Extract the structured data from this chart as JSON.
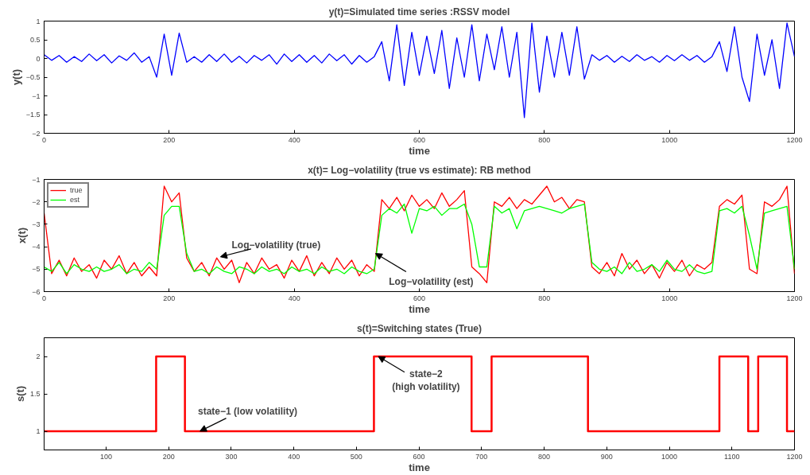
{
  "chart_data": [
    {
      "type": "line",
      "title": "y(t)=Simulated time series :RSSV model",
      "xlabel": "time",
      "ylabel": "y(t)",
      "xlim": [
        0,
        1200
      ],
      "ylim": [
        -2,
        1
      ],
      "xticks": [
        0,
        200,
        400,
        600,
        800,
        1000,
        1200
      ],
      "yticks": [
        -2,
        -1.5,
        -1,
        -0.5,
        0,
        0.5,
        1
      ],
      "grid": false,
      "legend": false,
      "x": [
        0,
        12,
        24,
        36,
        48,
        60,
        72,
        84,
        96,
        108,
        120,
        132,
        144,
        156,
        168,
        180,
        192,
        204,
        216,
        228,
        240,
        252,
        264,
        276,
        288,
        300,
        312,
        324,
        336,
        348,
        360,
        372,
        384,
        396,
        408,
        420,
        432,
        444,
        456,
        468,
        480,
        492,
        504,
        516,
        528,
        540,
        552,
        564,
        576,
        588,
        600,
        612,
        624,
        636,
        648,
        660,
        672,
        684,
        696,
        708,
        720,
        732,
        744,
        756,
        768,
        780,
        792,
        804,
        816,
        828,
        840,
        852,
        864,
        876,
        888,
        900,
        912,
        924,
        936,
        948,
        960,
        972,
        984,
        996,
        1008,
        1020,
        1032,
        1044,
        1056,
        1068,
        1080,
        1092,
        1104,
        1116,
        1128,
        1140,
        1152,
        1164,
        1176,
        1188,
        1200
      ],
      "series": [
        {
          "color": "#0000ff",
          "values": [
            0.1,
            -0.05,
            0.08,
            -0.1,
            0.05,
            -0.08,
            0.12,
            -0.06,
            0.1,
            -0.12,
            0.07,
            -0.05,
            0.15,
            -0.1,
            0.05,
            -0.5,
            0.65,
            -0.45,
            0.68,
            -0.1,
            0.05,
            -0.1,
            0.1,
            -0.08,
            0.12,
            -0.1,
            0.06,
            -0.12,
            0.08,
            -0.05,
            0.1,
            -0.15,
            0.12,
            -0.08,
            0.1,
            -0.1,
            0.08,
            -0.12,
            0.12,
            -0.06,
            0.1,
            -0.15,
            0.08,
            -0.1,
            0.05,
            0.45,
            -0.6,
            0.9,
            -0.72,
            0.7,
            -0.45,
            0.6,
            -0.4,
            0.75,
            -0.8,
            0.55,
            -0.5,
            0.9,
            -0.6,
            0.65,
            -0.3,
            0.85,
            -0.5,
            0.7,
            -1.58,
            0.95,
            -0.9,
            0.6,
            -0.5,
            0.7,
            -0.45,
            0.85,
            -0.55,
            0.1,
            -0.05,
            0.08,
            -0.1,
            0.06,
            -0.08,
            0.1,
            -0.05,
            0.05,
            -0.1,
            0.08,
            -0.06,
            0.1,
            -0.05,
            0.08,
            -0.1,
            0.05,
            0.45,
            -0.35,
            0.85,
            -0.5,
            -1.15,
            0.65,
            -0.45,
            0.5,
            -0.8,
            0.95,
            0.05
          ]
        }
      ]
    },
    {
      "type": "line",
      "title": "x(t)= Log−volatility (true vs estimate): RB method",
      "xlabel": "time",
      "ylabel": "x(t)",
      "xlim": [
        0,
        1200
      ],
      "ylim": [
        -6,
        -1
      ],
      "xticks": [
        0,
        200,
        400,
        600,
        800,
        1000,
        1200
      ],
      "yticks": [
        -6,
        -5,
        -4,
        -3,
        -2,
        -1
      ],
      "grid": false,
      "legend": "top left",
      "x": [
        0,
        12,
        24,
        36,
        48,
        60,
        72,
        84,
        96,
        108,
        120,
        132,
        144,
        156,
        168,
        180,
        192,
        204,
        216,
        228,
        240,
        252,
        264,
        276,
        288,
        300,
        312,
        324,
        336,
        348,
        360,
        372,
        384,
        396,
        408,
        420,
        432,
        444,
        456,
        468,
        480,
        492,
        504,
        516,
        528,
        540,
        552,
        564,
        576,
        588,
        600,
        612,
        624,
        636,
        648,
        660,
        672,
        684,
        696,
        708,
        720,
        732,
        744,
        756,
        768,
        780,
        792,
        804,
        816,
        828,
        840,
        852,
        864,
        876,
        888,
        900,
        912,
        924,
        936,
        948,
        960,
        972,
        984,
        996,
        1008,
        1020,
        1032,
        1044,
        1056,
        1068,
        1080,
        1092,
        1104,
        1116,
        1128,
        1140,
        1152,
        1164,
        1176,
        1188,
        1200
      ],
      "annotations": [
        {
          "text": "Log−volatility (true)",
          "x": 282,
          "y": -4.45
        },
        {
          "text": "Log−volatility (est)",
          "x": 530,
          "y": -4.3
        }
      ],
      "series": [
        {
          "name": "true",
          "color": "#ff0000",
          "values": [
            -2.5,
            -5.2,
            -4.6,
            -5.3,
            -4.5,
            -5.1,
            -4.8,
            -5.4,
            -4.6,
            -5.0,
            -4.4,
            -5.2,
            -4.7,
            -5.3,
            -4.9,
            -5.3,
            -1.3,
            -2.0,
            -1.6,
            -4.5,
            -5.1,
            -4.7,
            -5.3,
            -4.5,
            -5.0,
            -4.6,
            -5.6,
            -4.7,
            -5.2,
            -4.5,
            -5.0,
            -4.8,
            -5.4,
            -4.6,
            -5.1,
            -4.4,
            -5.3,
            -4.7,
            -5.2,
            -4.5,
            -5.0,
            -4.6,
            -5.3,
            -4.8,
            -5.1,
            -1.9,
            -2.3,
            -1.8,
            -2.4,
            -1.7,
            -2.2,
            -1.9,
            -2.3,
            -1.6,
            -2.2,
            -1.9,
            -1.5,
            -4.9,
            -5.2,
            -5.6,
            -2.0,
            -2.2,
            -1.8,
            -2.3,
            -1.9,
            -2.1,
            -1.7,
            -1.3,
            -2.0,
            -1.8,
            -2.3,
            -1.9,
            -2.0,
            -4.9,
            -5.2,
            -4.7,
            -5.3,
            -4.3,
            -5.0,
            -4.6,
            -5.2,
            -4.8,
            -5.4,
            -4.7,
            -5.1,
            -4.6,
            -5.3,
            -4.8,
            -5.0,
            -4.7,
            -2.2,
            -1.9,
            -2.1,
            -1.7,
            -5.0,
            -5.2,
            -2.0,
            -2.2,
            -1.9,
            -1.3,
            -5.2
          ]
        },
        {
          "name": "est",
          "color": "#00ff00",
          "values": [
            -4.9,
            -5.1,
            -4.7,
            -5.2,
            -4.8,
            -5.0,
            -5.1,
            -4.9,
            -5.1,
            -5.0,
            -4.8,
            -5.2,
            -5.0,
            -5.1,
            -4.7,
            -5.0,
            -2.6,
            -2.2,
            -2.2,
            -4.3,
            -5.1,
            -5.0,
            -5.2,
            -4.9,
            -5.1,
            -5.2,
            -4.9,
            -5.0,
            -5.2,
            -4.9,
            -5.1,
            -5.0,
            -5.2,
            -4.9,
            -5.1,
            -5.0,
            -5.2,
            -4.9,
            -5.1,
            -5.0,
            -5.2,
            -4.9,
            -5.1,
            -5.2,
            -5.0,
            -2.6,
            -2.3,
            -2.5,
            -2.1,
            -3.4,
            -2.3,
            -2.4,
            -2.2,
            -2.6,
            -2.3,
            -2.3,
            -2.1,
            -3.0,
            -4.9,
            -4.9,
            -2.2,
            -2.5,
            -2.3,
            -3.2,
            -2.4,
            -2.3,
            -2.2,
            -2.3,
            -2.4,
            -2.5,
            -2.3,
            -2.2,
            -2.1,
            -4.7,
            -5.0,
            -5.1,
            -4.9,
            -5.2,
            -4.7,
            -5.1,
            -5.0,
            -4.8,
            -5.1,
            -4.6,
            -5.0,
            -5.1,
            -4.8,
            -5.1,
            -5.2,
            -5.1,
            -2.4,
            -2.3,
            -2.5,
            -2.2,
            -3.5,
            -5.0,
            -2.5,
            -2.4,
            -2.3,
            -2.2,
            -5.0
          ]
        }
      ]
    },
    {
      "type": "step",
      "title": "s(t)=Switching states (True)",
      "xlabel": "time",
      "ylabel": "s(t)",
      "xlim": [
        1,
        1200
      ],
      "ylim": [
        0.75,
        2.25
      ],
      "xticks": [
        100,
        200,
        300,
        400,
        500,
        600,
        700,
        800,
        900,
        1000,
        1100,
        1200
      ],
      "yticks": [
        1,
        1.5,
        2
      ],
      "grid": false,
      "legend": false,
      "x": [
        1,
        180,
        226,
        528,
        684,
        716,
        870,
        1080,
        1126,
        1142,
        1188,
        1200
      ],
      "annotations": [
        {
          "text": "state−1 (low volatility)",
          "x": 250,
          "y": 1
        },
        {
          "text": "state−2\n(high volatility)",
          "x": 535,
          "y": 2
        }
      ],
      "series": [
        {
          "color": "#ff0000",
          "values": [
            1,
            2,
            1,
            2,
            1,
            2,
            1,
            2,
            1,
            2,
            1,
            1
          ]
        }
      ]
    }
  ]
}
